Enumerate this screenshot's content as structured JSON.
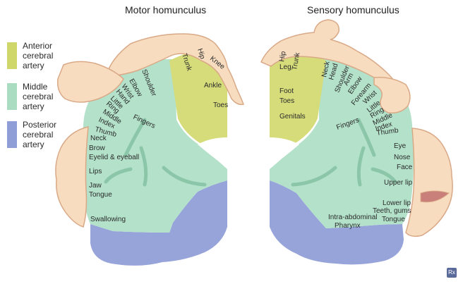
{
  "titles": {
    "motor": "Motor homunculus",
    "sensory": "Sensory homunculus"
  },
  "legend": [
    {
      "lines": [
        "Anterior",
        "cerebral",
        "artery"
      ],
      "color": "#cfd66a"
    },
    {
      "lines": [
        "Middle",
        "cerebral",
        "artery"
      ],
      "color": "#a9dcc0"
    },
    {
      "lines": [
        "Posterior",
        "cerebral",
        "artery"
      ],
      "color": "#8f9ed6"
    }
  ],
  "colors": {
    "anterior": "#d5dc79",
    "middle": "#b3e1c9",
    "posterior": "#97a4da",
    "skin": "#f7dcbf",
    "skin_outline": "#d9a987"
  },
  "motor_labels": {
    "trunk": "Trunk",
    "hip": "Hip",
    "knee": "Knee",
    "ankle": "Ankle",
    "toes": "Toes",
    "shoulder": "Shoulder",
    "elbow": "Elbow",
    "wrist": "Wrist",
    "hand": "Hand",
    "little": "Little",
    "ring": "Ring",
    "middle": "Middle",
    "index": "Index",
    "thumb": "Thumb",
    "neck": "Neck",
    "brow": "Brow",
    "eyelid": "Eyelid & eyeball",
    "fingers": "Fingers",
    "lips": "Lips",
    "jaw": "Jaw",
    "tongue": "Tongue",
    "swallowing": "Swallowing"
  },
  "sensory_labels": {
    "leg": "Leg",
    "hip": "Hip",
    "trunk": "Trunk",
    "neck": "Neck",
    "head": "Head",
    "shoulder": "Shoulder",
    "arm": "Arm",
    "elbow": "Elbow",
    "forearm": "Forearm",
    "wrist": "Wrist",
    "little": "Little",
    "ring": "Ring",
    "middle": "Middle",
    "index": "Index",
    "thumb": "Thumb",
    "foot": "Foot",
    "toes": "Toes",
    "genitals": "Genitals",
    "fingers": "Fingers",
    "eye": "Eye",
    "nose": "Nose",
    "face": "Face",
    "upper_lip": "Upper lip",
    "lower_lip": "Lower lip",
    "teeth": "Teeth, gums",
    "tongue": "Tongue",
    "intra": "Intra-abdominal",
    "pharynx": "Pharynx"
  },
  "brand_mark": "Rx"
}
